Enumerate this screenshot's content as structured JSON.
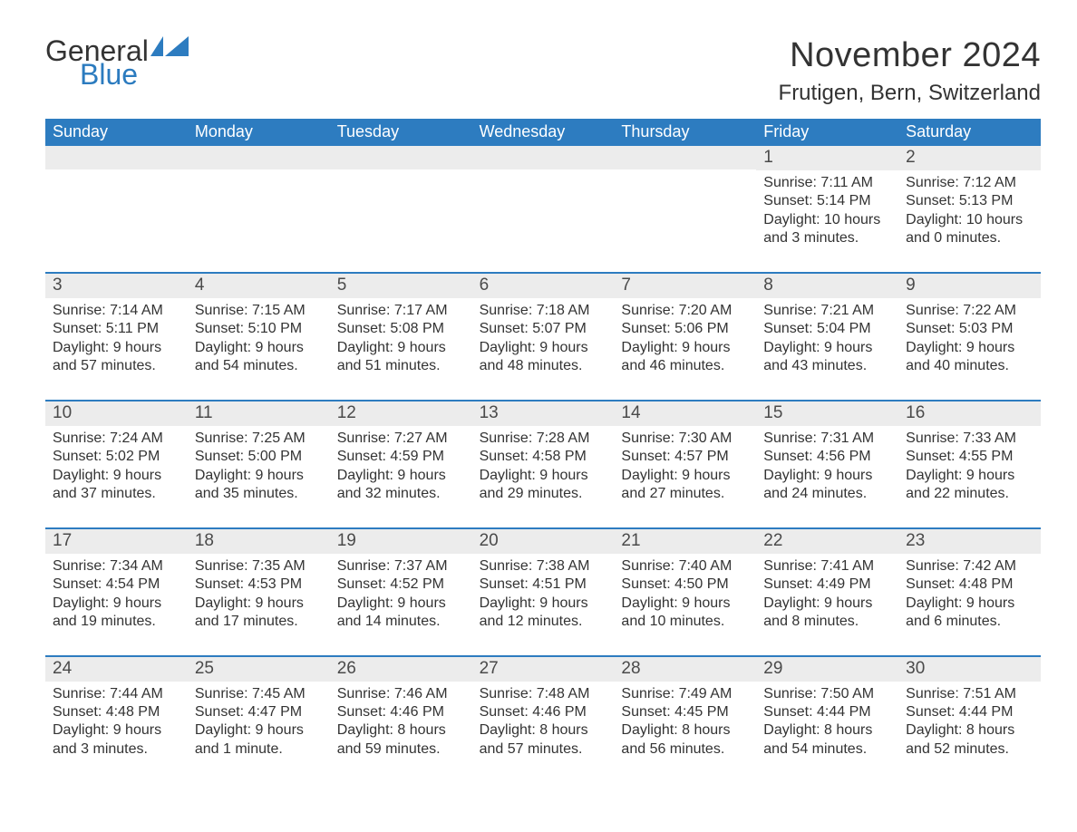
{
  "logo": {
    "text_general": "General",
    "text_blue": "Blue",
    "flag_color": "#2d7cc0"
  },
  "header": {
    "month_title": "November 2024",
    "location": "Frutigen, Bern, Switzerland"
  },
  "colors": {
    "header_bg": "#2d7cc0",
    "header_text": "#ffffff",
    "day_number_bg": "#ececec",
    "text": "#333333",
    "rule": "#2d7cc0"
  },
  "weekdays": [
    "Sunday",
    "Monday",
    "Tuesday",
    "Wednesday",
    "Thursday",
    "Friday",
    "Saturday"
  ],
  "weeks": [
    [
      null,
      null,
      null,
      null,
      null,
      {
        "n": "1",
        "sunrise": "7:11 AM",
        "sunset": "5:14 PM",
        "daylight": "10 hours and 3 minutes."
      },
      {
        "n": "2",
        "sunrise": "7:12 AM",
        "sunset": "5:13 PM",
        "daylight": "10 hours and 0 minutes."
      }
    ],
    [
      {
        "n": "3",
        "sunrise": "7:14 AM",
        "sunset": "5:11 PM",
        "daylight": "9 hours and 57 minutes."
      },
      {
        "n": "4",
        "sunrise": "7:15 AM",
        "sunset": "5:10 PM",
        "daylight": "9 hours and 54 minutes."
      },
      {
        "n": "5",
        "sunrise": "7:17 AM",
        "sunset": "5:08 PM",
        "daylight": "9 hours and 51 minutes."
      },
      {
        "n": "6",
        "sunrise": "7:18 AM",
        "sunset": "5:07 PM",
        "daylight": "9 hours and 48 minutes."
      },
      {
        "n": "7",
        "sunrise": "7:20 AM",
        "sunset": "5:06 PM",
        "daylight": "9 hours and 46 minutes."
      },
      {
        "n": "8",
        "sunrise": "7:21 AM",
        "sunset": "5:04 PM",
        "daylight": "9 hours and 43 minutes."
      },
      {
        "n": "9",
        "sunrise": "7:22 AM",
        "sunset": "5:03 PM",
        "daylight": "9 hours and 40 minutes."
      }
    ],
    [
      {
        "n": "10",
        "sunrise": "7:24 AM",
        "sunset": "5:02 PM",
        "daylight": "9 hours and 37 minutes."
      },
      {
        "n": "11",
        "sunrise": "7:25 AM",
        "sunset": "5:00 PM",
        "daylight": "9 hours and 35 minutes."
      },
      {
        "n": "12",
        "sunrise": "7:27 AM",
        "sunset": "4:59 PM",
        "daylight": "9 hours and 32 minutes."
      },
      {
        "n": "13",
        "sunrise": "7:28 AM",
        "sunset": "4:58 PM",
        "daylight": "9 hours and 29 minutes."
      },
      {
        "n": "14",
        "sunrise": "7:30 AM",
        "sunset": "4:57 PM",
        "daylight": "9 hours and 27 minutes."
      },
      {
        "n": "15",
        "sunrise": "7:31 AM",
        "sunset": "4:56 PM",
        "daylight": "9 hours and 24 minutes."
      },
      {
        "n": "16",
        "sunrise": "7:33 AM",
        "sunset": "4:55 PM",
        "daylight": "9 hours and 22 minutes."
      }
    ],
    [
      {
        "n": "17",
        "sunrise": "7:34 AM",
        "sunset": "4:54 PM",
        "daylight": "9 hours and 19 minutes."
      },
      {
        "n": "18",
        "sunrise": "7:35 AM",
        "sunset": "4:53 PM",
        "daylight": "9 hours and 17 minutes."
      },
      {
        "n": "19",
        "sunrise": "7:37 AM",
        "sunset": "4:52 PM",
        "daylight": "9 hours and 14 minutes."
      },
      {
        "n": "20",
        "sunrise": "7:38 AM",
        "sunset": "4:51 PM",
        "daylight": "9 hours and 12 minutes."
      },
      {
        "n": "21",
        "sunrise": "7:40 AM",
        "sunset": "4:50 PM",
        "daylight": "9 hours and 10 minutes."
      },
      {
        "n": "22",
        "sunrise": "7:41 AM",
        "sunset": "4:49 PM",
        "daylight": "9 hours and 8 minutes."
      },
      {
        "n": "23",
        "sunrise": "7:42 AM",
        "sunset": "4:48 PM",
        "daylight": "9 hours and 6 minutes."
      }
    ],
    [
      {
        "n": "24",
        "sunrise": "7:44 AM",
        "sunset": "4:48 PM",
        "daylight": "9 hours and 3 minutes."
      },
      {
        "n": "25",
        "sunrise": "7:45 AM",
        "sunset": "4:47 PM",
        "daylight": "9 hours and 1 minute."
      },
      {
        "n": "26",
        "sunrise": "7:46 AM",
        "sunset": "4:46 PM",
        "daylight": "8 hours and 59 minutes."
      },
      {
        "n": "27",
        "sunrise": "7:48 AM",
        "sunset": "4:46 PM",
        "daylight": "8 hours and 57 minutes."
      },
      {
        "n": "28",
        "sunrise": "7:49 AM",
        "sunset": "4:45 PM",
        "daylight": "8 hours and 56 minutes."
      },
      {
        "n": "29",
        "sunrise": "7:50 AM",
        "sunset": "4:44 PM",
        "daylight": "8 hours and 54 minutes."
      },
      {
        "n": "30",
        "sunrise": "7:51 AM",
        "sunset": "4:44 PM",
        "daylight": "8 hours and 52 minutes."
      }
    ]
  ],
  "labels": {
    "sunrise_prefix": "Sunrise: ",
    "sunset_prefix": "Sunset: ",
    "daylight_prefix": "Daylight: "
  }
}
